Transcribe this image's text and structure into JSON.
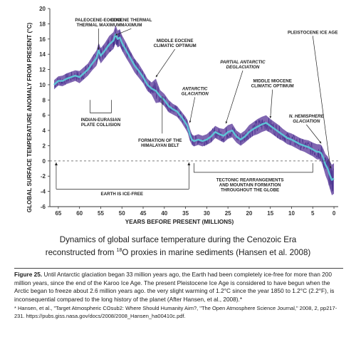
{
  "chart_data": {
    "type": "line",
    "title": "Dynamics of global surface temperature during the Cenozoic Era reconstructed from 18O proxies in marine sediments (Hansen et al. 2008)",
    "title_line1": "Dynamics of global surface temperature during the Cenozoic Era",
    "title_line2_pre": "reconstructed from ",
    "title_line2_sup": "18",
    "title_line2_post": "O proxies in marine sediments (Hansen et al. 2008)",
    "xlabel": "YEARS BEFORE PRESENT (MILLIONS)",
    "ylabel": "GLOBAL SURFACE TEMPERATURE ANOMALY FROM PRESENT (°C)",
    "xlim": [
      67,
      -1
    ],
    "ylim": [
      -6,
      20
    ],
    "x_ticks": [
      65,
      60,
      55,
      50,
      45,
      40,
      35,
      30,
      25,
      20,
      15,
      10,
      5,
      0
    ],
    "y_ticks": [
      20,
      18,
      16,
      14,
      12,
      10,
      8,
      6,
      4,
      2,
      0,
      -2,
      -4,
      -6
    ],
    "grid": false,
    "series": [
      {
        "color": "#5ec4d6",
        "range_color": "#6a4ba3",
        "x": [
          66,
          65,
          64,
          63,
          62,
          61,
          60,
          59,
          58,
          57,
          56,
          55.5,
          55,
          54,
          53,
          52,
          51.5,
          51,
          50.5,
          50,
          49,
          48,
          47,
          46,
          45,
          44,
          43,
          42,
          41,
          40,
          39,
          38,
          37,
          36,
          35,
          34.5,
          34,
          33.5,
          33,
          32,
          31,
          30,
          29,
          28,
          27,
          26,
          25,
          24,
          23,
          22,
          21,
          20,
          19,
          18,
          17,
          16,
          15,
          14,
          13,
          12,
          11,
          10,
          9,
          8,
          7,
          6,
          5,
          4,
          3.5,
          3,
          2.6,
          2,
          1.5,
          1,
          0.5,
          0
        ],
        "values": [
          10.0,
          10.5,
          10.5,
          10.8,
          11.0,
          11.2,
          11.0,
          11.5,
          12.0,
          12.8,
          13.5,
          14.5,
          13.8,
          14.5,
          15.3,
          15.8,
          16.6,
          16.0,
          16.2,
          15.5,
          14.5,
          13.5,
          12.5,
          11.8,
          11.0,
          10.0,
          9.5,
          9.2,
          8.5,
          8.0,
          7.2,
          6.8,
          6.5,
          5.8,
          5.0,
          4.5,
          3.5,
          2.8,
          2.6,
          2.8,
          2.6,
          2.8,
          3.2,
          3.8,
          3.5,
          3.3,
          3.8,
          4.0,
          3.2,
          2.8,
          3.2,
          3.8,
          4.2,
          4.5,
          4.8,
          5.0,
          4.6,
          4.2,
          3.8,
          3.4,
          3.0,
          2.8,
          2.5,
          2.2,
          2.0,
          1.8,
          1.5,
          1.2,
          1.2,
          1.0,
          0.5,
          -0.5,
          -1.0,
          -1.8,
          -2.5,
          -2.3
        ],
        "spread": [
          0.6,
          0.6,
          0.7,
          0.7,
          0.7,
          0.7,
          0.8,
          0.8,
          0.8,
          0.9,
          1.0,
          1.0,
          1.0,
          1.0,
          1.1,
          1.1,
          1.2,
          1.1,
          1.1,
          1.0,
          1.0,
          0.9,
          0.9,
          0.9,
          0.8,
          0.8,
          0.8,
          1.6,
          0.8,
          0.8,
          0.8,
          0.7,
          0.7,
          0.7,
          0.8,
          0.8,
          0.8,
          0.7,
          0.7,
          0.7,
          0.7,
          0.7,
          0.8,
          0.8,
          0.8,
          0.9,
          0.9,
          0.9,
          0.8,
          0.8,
          0.8,
          0.9,
          0.9,
          1.0,
          1.0,
          1.0,
          0.9,
          0.9,
          0.9,
          0.8,
          0.8,
          0.8,
          0.8,
          0.8,
          0.8,
          0.9,
          0.9,
          1.0,
          1.0,
          1.1,
          1.2,
          1.4,
          1.6,
          1.8,
          2.0,
          2.0
        ]
      }
    ],
    "zero_line": 0,
    "annotations": [
      {
        "lines": [
          "PALEOCENE-EOCENE",
          "THERMAL MAXIMUM"
        ],
        "italic": false,
        "x": 55.5,
        "y": 18.3,
        "arrow_to": [
          55.5,
          14.6
        ]
      },
      {
        "lines": [
          "EOCENE THERMAL",
          "MAXIMUM"
        ],
        "italic": false,
        "x": 47.8,
        "y": 18.3,
        "arrow_to": [
          51.6,
          16.5
        ]
      },
      {
        "lines": [
          "MIDDLE EOCENE",
          "CLIMATIC OPTIMUM"
        ],
        "italic": false,
        "x": 37.5,
        "y": 15.6,
        "arrow_to": [
          42,
          11.0
        ]
      },
      {
        "lines": [
          "PALEOCENE-EOCENE"
        ],
        "italic": false,
        "hidden": true
      },
      {
        "lines": [
          "PARTIAL ANTARCTIC",
          "DEGLACIATION"
        ],
        "italic": true,
        "x": 21.5,
        "y": 12.8,
        "arrow_to": [
          25.5,
          4.9
        ]
      },
      {
        "lines": [
          "MIDDLE MIOCENE",
          "CLIMATIC OPTIMUM"
        ],
        "italic": false,
        "x": 14.5,
        "y": 10.3,
        "arrow_to": [
          15,
          5.6
        ]
      },
      {
        "lines": [
          "ANTARCTIC",
          "GLACIATION"
        ],
        "italic": true,
        "x": 32.8,
        "y": 9.3,
        "arrow_to": [
          34,
          5.0
        ]
      },
      {
        "lines": [
          "N. HEMISPHERE",
          "GLACIATION"
        ],
        "italic": true,
        "x": 6.5,
        "y": 5.7,
        "arrow_to": [
          3,
          2.3
        ]
      },
      {
        "lines": [
          "PLEISTOCENE ICE AGE"
        ],
        "italic": false,
        "x": 5.0,
        "y": 16.7,
        "arrow_to": [
          0.8,
          -1.0
        ]
      },
      {
        "lines": [
          "INDIAN-EURASIAN",
          "PLATE COLLISION"
        ],
        "italic": false,
        "x": 55.0,
        "y": 5.2
      },
      {
        "lines": [
          "FORMATION OF THE",
          "HIMALAYAN BELT"
        ],
        "italic": false,
        "x": 41.0,
        "y": 2.5
      },
      {
        "lines": [
          "TECTONIC REARRANGEMENTS",
          "AND MOUNTAIN FORMATION",
          "THROUGHOUT THE GLOBE"
        ],
        "italic": false,
        "x": 19.8,
        "y": -2.7
      },
      {
        "lines": [
          "EARTH IS ICE-FREE"
        ],
        "italic": false,
        "x": 50.0,
        "y": -4.5
      }
    ]
  },
  "caption": {
    "label": "Figure 25.",
    "text": " Until Antarctic glaciation began 33 million years ago, the Earth had been completely ice-free for more than 200 million years, since the end of the Karoo Ice Age. The present Pleistocene Ice Age is considered to have begun when the Arctic began to freeze about 2.6 million years ago. the very slight warming of 1.2°C since the year 1850 to 1.2°C (2.2°F), is inconsequential compared to the long history of the planet (After Hansen, et al., 2008).*",
    "footnote": "*  Hansen, et al., \"Target Atmospheric COsub2: Where Should Humanity Aim?, \"The Open Atmosphere Science Journal,\" 2008, 2, pp217-231. https://pubs.giss.nasa.gov/docs/2008/2008_Hansen_ha00410c.pdf."
  }
}
